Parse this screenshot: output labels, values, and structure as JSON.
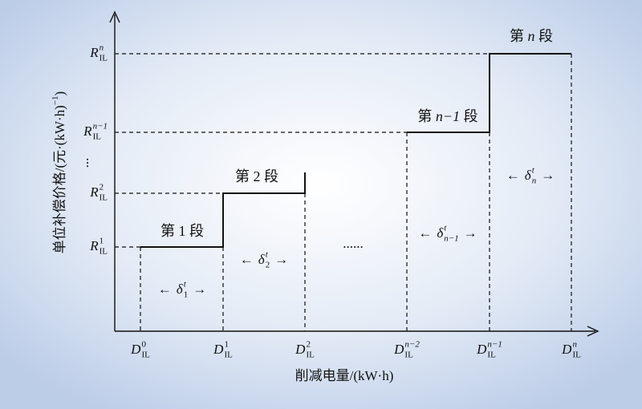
{
  "y_axis_title": {
    "text": "单位补偿价格/(元·(kW·h)",
    "sup": "−1",
    "end": ")"
  },
  "x_axis_title": "削减电量/(kW·h)",
  "y_labels": [
    {
      "base": "R",
      "sup": "1",
      "sub": "IL"
    },
    {
      "base": "R",
      "sup": "2",
      "sub": "IL"
    },
    {
      "base": "R",
      "sup": "n−1",
      "sub": "IL"
    },
    {
      "base": "R",
      "sup": "n",
      "sub": "IL"
    }
  ],
  "y_ellipsis": "...",
  "x_labels": [
    {
      "base": "D",
      "sup": "0",
      "sub": "IL"
    },
    {
      "base": "D",
      "sup": "1",
      "sub": "IL"
    },
    {
      "base": "D",
      "sup": "2",
      "sub": "IL"
    },
    {
      "base": "D",
      "sup": "n−2",
      "sub": "IL"
    },
    {
      "base": "D",
      "sup": "n−1",
      "sub": "IL"
    },
    {
      "base": "D",
      "sup": "n",
      "sub": "IL"
    }
  ],
  "segments": [
    {
      "pre": "第 ",
      "num": "1",
      "post": " 段"
    },
    {
      "pre": "第 ",
      "num": "2",
      "post": " 段"
    },
    {
      "pre": "第 ",
      "num": "n−1",
      "post": " 段"
    },
    {
      "pre": "第 ",
      "num": "n",
      "post": " 段"
    }
  ],
  "widths": [
    {
      "left": "←",
      "base": "δ",
      "sup": "t",
      "sub": "1",
      "right": "→"
    },
    {
      "left": "←",
      "base": "δ",
      "sup": "t",
      "sub": "2",
      "right": "→"
    },
    {
      "left": "←",
      "base": "δ",
      "sup": "t",
      "sub": "n−1",
      "right": "→"
    },
    {
      "left": "←",
      "base": "δ",
      "sup": "t",
      "sub": "n",
      "right": "→"
    }
  ],
  "x_ellipsis": "......"
}
